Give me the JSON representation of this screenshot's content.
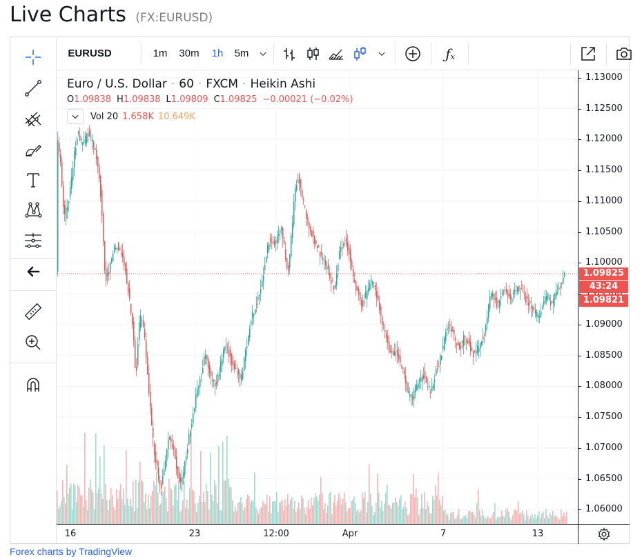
{
  "page": {
    "title": "Live Charts",
    "symbol_paren": "(FX:EURUSD)",
    "footer_link": "Forex charts by TradingView"
  },
  "toolbar": {
    "symbol": "EURUSD",
    "intervals": [
      "1m",
      "30m",
      "1h",
      "5m"
    ],
    "active_interval": "1h",
    "chevron": "chevron-down-icon",
    "chart_type_icons": [
      "bar-chart-icon",
      "candles-icon",
      "area-icon",
      "heikin-ashi-icon"
    ],
    "right_icons": [
      "plus-circle-icon",
      "fx-icon",
      "popout-icon",
      "camera-icon"
    ]
  },
  "left_tools": [
    "crosshair-icon",
    "trendline-icon",
    "pitchfork-icon",
    "brush-icon",
    "text-icon",
    "pattern-icon",
    "prediction-icon",
    "arrow-left-icon",
    "ruler-icon",
    "zoom-in-icon",
    "magnet-icon"
  ],
  "legend": {
    "name": "Euro / U.S. Dollar",
    "interval": "60",
    "exchange": "FXCM",
    "style": "Heikin Ashi",
    "o_label": "O",
    "o": "1.09838",
    "h_label": "H",
    "h": "1.09838",
    "l_label": "L",
    "l": "1.09809",
    "c_label": "C",
    "c": "1.09825",
    "change": "−0.00021 (−0.02%)",
    "vol_label": "Vol 20",
    "vol_value": "1.658K",
    "vol_ma": "10.649K"
  },
  "price_tags": {
    "last": "1.09825",
    "countdown": "43:24",
    "other": "1.09821"
  },
  "colors": {
    "up": "#26a69a",
    "down": "#ef5350",
    "accent": "#2962ff",
    "vol_up": "#8fd3c9",
    "vol_down": "#f5a8a6"
  },
  "chart_data": {
    "type": "heikin-ashi candlestick",
    "symbol": "EURUSD",
    "interval": "60",
    "y_ticks": [
      "1.13000",
      "1.12500",
      "1.12000",
      "1.11500",
      "1.11000",
      "1.10500",
      "1.10000",
      "1.09500",
      "1.09000",
      "1.08500",
      "1.08000",
      "1.07500",
      "1.07000",
      "1.06500",
      "1.06000"
    ],
    "ylim": [
      1.0577,
      1.1312
    ],
    "x_ticks": [
      "16",
      "23",
      "12:00",
      "Apr",
      "7",
      "13"
    ],
    "last_price": 1.09825,
    "path": [
      [
        0,
        1.121
      ],
      [
        5,
        1.116
      ],
      [
        10,
        1.107
      ],
      [
        18,
        1.111
      ],
      [
        24,
        1.117
      ],
      [
        30,
        1.121
      ],
      [
        38,
        1.119
      ],
      [
        44,
        1.121
      ],
      [
        50,
        1.12
      ],
      [
        56,
        1.118
      ],
      [
        62,
        1.113
      ],
      [
        66,
        1.106
      ],
      [
        70,
        1.097
      ],
      [
        76,
        1.099
      ],
      [
        82,
        1.102
      ],
      [
        88,
        1.103
      ],
      [
        94,
        1.101
      ],
      [
        100,
        1.098
      ],
      [
        106,
        1.093
      ],
      [
        110,
        1.089
      ],
      [
        114,
        1.081
      ],
      [
        118,
        1.089
      ],
      [
        122,
        1.092
      ],
      [
        126,
        1.089
      ],
      [
        130,
        1.083
      ],
      [
        136,
        1.075
      ],
      [
        140,
        1.07
      ],
      [
        146,
        1.066
      ],
      [
        150,
        1.063
      ],
      [
        156,
        1.067
      ],
      [
        162,
        1.072
      ],
      [
        168,
        1.07
      ],
      [
        174,
        1.066
      ],
      [
        180,
        1.064
      ],
      [
        184,
        1.067
      ],
      [
        190,
        1.071
      ],
      [
        196,
        1.075
      ],
      [
        202,
        1.079
      ],
      [
        208,
        1.082
      ],
      [
        214,
        1.085
      ],
      [
        220,
        1.083
      ],
      [
        226,
        1.08
      ],
      [
        232,
        1.081
      ],
      [
        238,
        1.084
      ],
      [
        244,
        1.087
      ],
      [
        250,
        1.085
      ],
      [
        256,
        1.083
      ],
      [
        262,
        1.082
      ],
      [
        266,
        1.081
      ],
      [
        272,
        1.085
      ],
      [
        278,
        1.089
      ],
      [
        284,
        1.092
      ],
      [
        290,
        1.094
      ],
      [
        296,
        1.096
      ],
      [
        302,
        1.101
      ],
      [
        308,
        1.104
      ],
      [
        314,
        1.103
      ],
      [
        320,
        1.104
      ],
      [
        324,
        1.106
      ],
      [
        330,
        1.102
      ],
      [
        334,
        1.098
      ],
      [
        340,
        1.105
      ],
      [
        344,
        1.112
      ],
      [
        350,
        1.114
      ],
      [
        356,
        1.11
      ],
      [
        362,
        1.107
      ],
      [
        368,
        1.105
      ],
      [
        374,
        1.103
      ],
      [
        380,
        1.102
      ],
      [
        386,
        1.1
      ],
      [
        392,
        1.099
      ],
      [
        396,
        1.097
      ],
      [
        402,
        1.096
      ],
      [
        408,
        1.101
      ],
      [
        414,
        1.103
      ],
      [
        418,
        1.104
      ],
      [
        424,
        1.101
      ],
      [
        430,
        1.097
      ],
      [
        436,
        1.095
      ],
      [
        442,
        1.093
      ],
      [
        448,
        1.095
      ],
      [
        454,
        1.097
      ],
      [
        460,
        1.096
      ],
      [
        466,
        1.093
      ],
      [
        472,
        1.09
      ],
      [
        478,
        1.087
      ],
      [
        484,
        1.085
      ],
      [
        490,
        1.086
      ],
      [
        496,
        1.084
      ],
      [
        502,
        1.082
      ],
      [
        508,
        1.079
      ],
      [
        514,
        1.078
      ],
      [
        520,
        1.08
      ],
      [
        526,
        1.081
      ],
      [
        532,
        1.082
      ],
      [
        536,
        1.08
      ],
      [
        542,
        1.079
      ],
      [
        548,
        1.082
      ],
      [
        554,
        1.084
      ],
      [
        560,
        1.087
      ],
      [
        566,
        1.09
      ],
      [
        572,
        1.089
      ],
      [
        578,
        1.087
      ],
      [
        584,
        1.086
      ],
      [
        590,
        1.088
      ],
      [
        596,
        1.087
      ],
      [
        602,
        1.085
      ],
      [
        608,
        1.086
      ],
      [
        614,
        1.087
      ],
      [
        620,
        1.089
      ],
      [
        626,
        1.094
      ],
      [
        632,
        1.095
      ],
      [
        638,
        1.093
      ],
      [
        644,
        1.095
      ],
      [
        650,
        1.096
      ],
      [
        656,
        1.094
      ],
      [
        662,
        1.095
      ],
      [
        668,
        1.096
      ],
      [
        674,
        1.095
      ],
      [
        680,
        1.094
      ],
      [
        686,
        1.093
      ],
      [
        692,
        1.092
      ],
      [
        698,
        1.091
      ],
      [
        704,
        1.093
      ],
      [
        710,
        1.095
      ],
      [
        716,
        1.093
      ],
      [
        722,
        1.095
      ],
      [
        728,
        1.096
      ],
      [
        734,
        1.098
      ],
      [
        737,
        1.098
      ]
    ]
  }
}
